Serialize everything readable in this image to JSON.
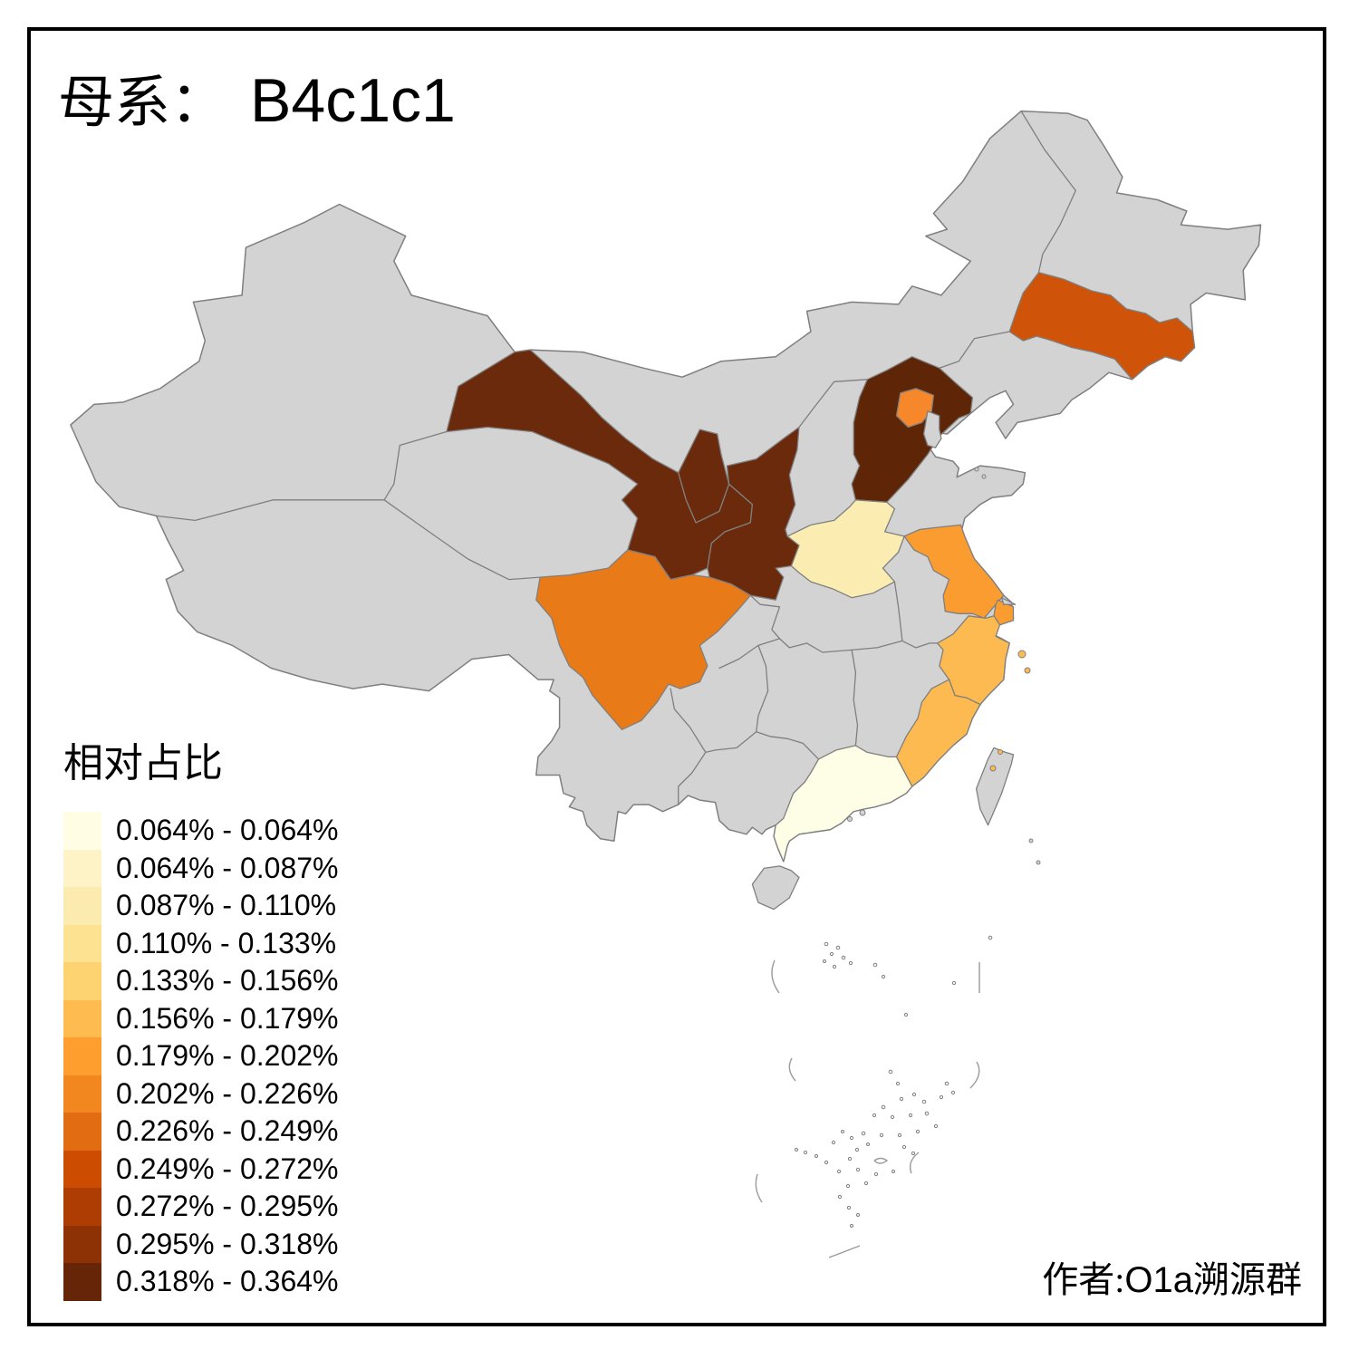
{
  "title": {
    "prefix": "母系：",
    "value": "B4c1c1"
  },
  "legend": {
    "title": "相对占比",
    "classes": [
      {
        "label": "0.064% - 0.064%",
        "color": "#FFFEE5"
      },
      {
        "label": "0.064% - 0.087%",
        "color": "#FDF3C6"
      },
      {
        "label": "0.087% - 0.110%",
        "color": "#FBEBAE"
      },
      {
        "label": "0.110% - 0.133%",
        "color": "#FDE291"
      },
      {
        "label": "0.133% - 0.156%",
        "color": "#FDD271"
      },
      {
        "label": "0.156% - 0.179%",
        "color": "#FDBB50"
      },
      {
        "label": "0.179% - 0.202%",
        "color": "#FD9E2E"
      },
      {
        "label": "0.202% - 0.226%",
        "color": "#F2871F"
      },
      {
        "label": "0.226% - 0.249%",
        "color": "#E16C11"
      },
      {
        "label": "0.249% - 0.272%",
        "color": "#CC4C02"
      },
      {
        "label": "0.272% - 0.295%",
        "color": "#AE3D03"
      },
      {
        "label": "0.295% - 0.318%",
        "color": "#8C3204"
      },
      {
        "label": "0.318% - 0.364%",
        "color": "#662506"
      }
    ]
  },
  "credit": {
    "prefix": "作者:",
    "id": "O1a",
    "suffix": "溯源群"
  },
  "map": {
    "sea_color": "#FFFFFF",
    "land_color": "#D3D3D3",
    "boundary_color": "#7F7F7F",
    "frame_color": "#000000",
    "provinces": [
      {
        "id": "gansu",
        "range": "0.318% - 0.364%",
        "color": "#6B2A0B"
      },
      {
        "id": "ningxia",
        "range": "0.318% - 0.364%",
        "color": "#6B2A0B"
      },
      {
        "id": "shaanxi",
        "range": "0.318% - 0.364%",
        "color": "#6B2A0B"
      },
      {
        "id": "hebei",
        "range": "0.318% - 0.364%",
        "color": "#5E2507"
      },
      {
        "id": "beijing",
        "range": "0.202% - 0.226%",
        "color": "#F6872B"
      },
      {
        "id": "tianjin",
        "range": "",
        "color": "#D3D3D3"
      },
      {
        "id": "jilin",
        "range": "0.249% - 0.272%",
        "color": "#CF5409"
      },
      {
        "id": "sichuan",
        "range": "0.226% - 0.249%",
        "color": "#E97A18"
      },
      {
        "id": "henan",
        "range": "0.087% - 0.110%",
        "color": "#FBEDB2"
      },
      {
        "id": "jiangsu",
        "range": "0.179% - 0.202%",
        "color": "#FB9C30"
      },
      {
        "id": "shanghai",
        "range": "0.179% - 0.202%",
        "color": "#FB9C30"
      },
      {
        "id": "chongming",
        "range": "",
        "color": "#D3D3D3"
      },
      {
        "id": "zhejiang",
        "range": "0.156% - 0.179%",
        "color": "#FDBA50"
      },
      {
        "id": "fujian",
        "range": "0.156% - 0.179%",
        "color": "#FDBA50"
      },
      {
        "id": "guangdong",
        "range": "0.064% - 0.064%",
        "color": "#FEFDE5"
      },
      {
        "id": "hainan",
        "range": "",
        "color": "#D3D3D3"
      },
      {
        "id": "taiwan",
        "range": "",
        "color": "#D3D3D3"
      }
    ]
  }
}
